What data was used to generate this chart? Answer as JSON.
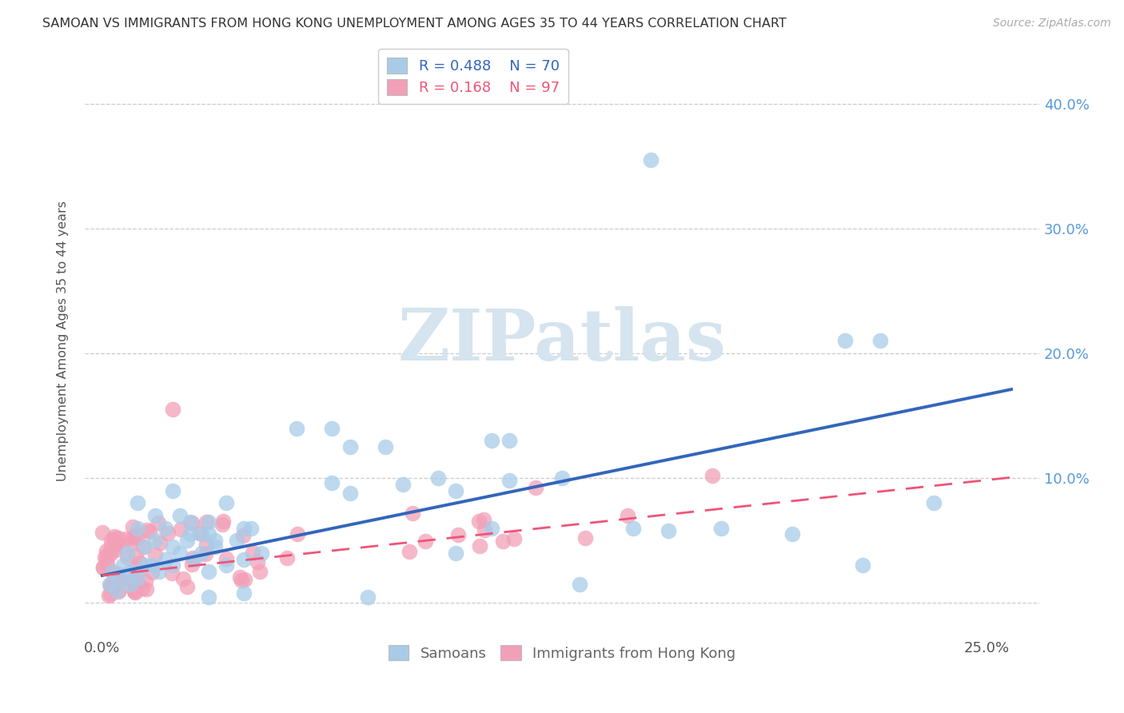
{
  "title": "SAMOAN VS IMMIGRANTS FROM HONG KONG UNEMPLOYMENT AMONG AGES 35 TO 44 YEARS CORRELATION CHART",
  "source": "Source: ZipAtlas.com",
  "ylabel": "Unemployment Among Ages 35 to 44 years",
  "ytick_values": [
    0.0,
    0.1,
    0.2,
    0.3,
    0.4
  ],
  "ytick_labels_right": [
    "",
    "10.0%",
    "20.0%",
    "30.0%",
    "40.0%"
  ],
  "xtick_values": [
    0.0,
    0.25
  ],
  "xtick_labels": [
    "0.0%",
    "25.0%"
  ],
  "xlim": [
    -0.005,
    0.265
  ],
  "ylim": [
    -0.025,
    0.445
  ],
  "blue_R": 0.488,
  "blue_N": 70,
  "pink_R": 0.168,
  "pink_N": 97,
  "blue_scatter_color": "#A8CCE8",
  "pink_scatter_color": "#F2A0B8",
  "blue_line_color": "#3366BB",
  "pink_line_color": "#EE5577",
  "grid_color": "#CCCCCC",
  "background_color": "#FFFFFF",
  "watermark_text": "ZIPatlas",
  "watermark_color": "#D5E4EE",
  "legend_label_blue": "Samoans",
  "legend_label_pink": "Immigrants from Hong Kong",
  "title_fontsize": 11.5,
  "axis_fontsize": 13,
  "legend_fontsize": 13,
  "blue_line_intercept": 0.02,
  "blue_line_slope": 0.6,
  "pink_line_intercept": 0.02,
  "pink_line_slope": 0.32
}
